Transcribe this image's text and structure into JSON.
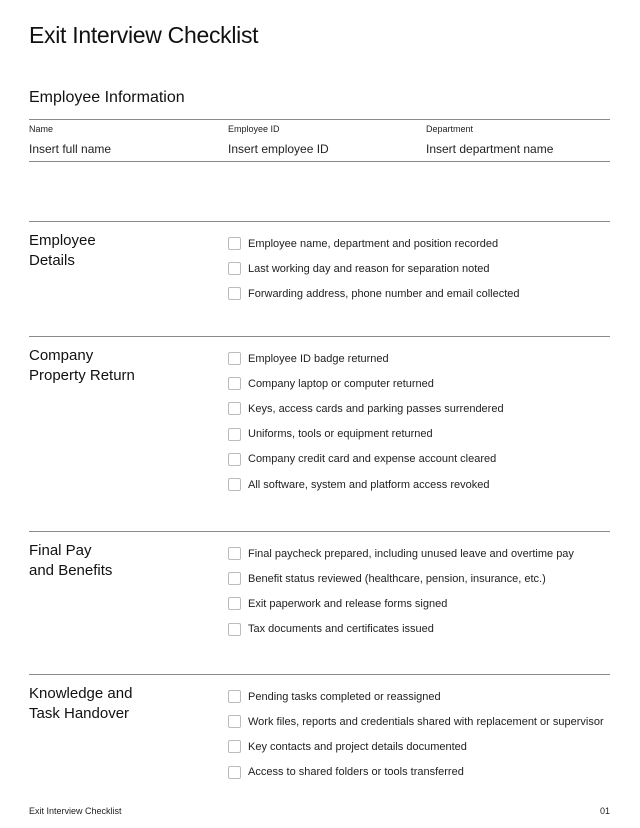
{
  "title": "Exit Interview Checklist",
  "employee_info": {
    "heading": "Employee Information",
    "fields": [
      {
        "label": "Name",
        "placeholder": "Insert full name"
      },
      {
        "label": "Employee ID",
        "placeholder": "Insert employee ID"
      },
      {
        "label": "Department",
        "placeholder": "Insert department name"
      }
    ]
  },
  "sections": [
    {
      "title": "Employee Details",
      "items": [
        "Employee name, department and position recorded",
        "Last working day and reason for separation noted",
        "Forwarding address, phone number and email collected"
      ]
    },
    {
      "title": "Company Property Return",
      "items": [
        "Employee ID badge returned",
        "Company laptop or computer returned",
        "Keys, access cards and parking passes surrendered",
        "Uniforms, tools or equipment returned",
        "Company credit card and expense account cleared",
        "All software, system and platform access revoked"
      ]
    },
    {
      "title": "Final Pay and Benefits",
      "items": [
        "Final paycheck prepared, including unused leave and overtime pay",
        "Benefit status reviewed (healthcare, pension, insurance, etc.)",
        "Exit paperwork and release forms signed",
        "Tax documents and certificates issued"
      ]
    },
    {
      "title": "Knowledge and Task Handover",
      "items": [
        "Pending tasks completed or reassigned",
        "Work files, reports and credentials shared with replacement or supervisor",
        "Key contacts and project details documented",
        "Access to shared folders or tools transferred"
      ]
    }
  ],
  "footer": {
    "left": "Exit Interview Checklist",
    "page": "01"
  }
}
